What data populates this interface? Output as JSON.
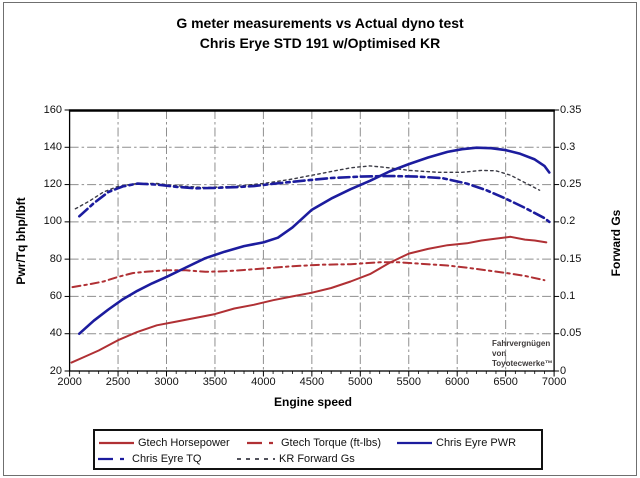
{
  "window": {
    "background": "#ffffff",
    "frame_color": "#6f6f6f"
  },
  "title": {
    "line1": "G meter measurements vs Actual dyno test",
    "line2": "Chris Erye STD 191 w/Optimised KR"
  },
  "watermark": {
    "line1": "Fahrvergnügen",
    "line2": "von",
    "line3": "Toyotecwerke™"
  },
  "chart_data": {
    "type": "line",
    "title": "G meter measurements vs Actual dyno test",
    "subtitle": "Chris Erye STD 191 w/Optimised KR",
    "xlabel": "Engine speed",
    "ylabel_left": "Pwr/Tq bhp/lbft",
    "ylabel_right": "Forward Gs",
    "x_range": [
      2000,
      7000
    ],
    "x_ticks": [
      2000,
      2500,
      3000,
      3500,
      4000,
      4500,
      5000,
      5500,
      6000,
      6500,
      7000
    ],
    "x_minor_tick_step": 100,
    "y_left_range": [
      20,
      160
    ],
    "y_left_ticks": [
      160,
      140,
      120,
      100,
      80,
      60,
      40,
      20
    ],
    "y_right_range": [
      0,
      0.35
    ],
    "y_right_ticks": [
      "0.35",
      "0.3",
      "0.25",
      "0.2",
      "0.15",
      "0.1",
      "0.05",
      "0"
    ],
    "grid": {
      "show": true,
      "color": "#8f8f8f",
      "style": "dash-dot"
    },
    "legend_position": "bottom",
    "series": [
      {
        "name": "gtech_horsepower",
        "label": "Gtech Horsepower",
        "color": "#b03034",
        "line_style": "solid",
        "width": 2,
        "axis": "left",
        "points": [
          [
            2020,
            24.5
          ],
          [
            2150,
            27.5
          ],
          [
            2300,
            31
          ],
          [
            2500,
            36.5
          ],
          [
            2700,
            41
          ],
          [
            2900,
            44.5
          ],
          [
            3100,
            46.5
          ],
          [
            3300,
            48.5
          ],
          [
            3500,
            50.5
          ],
          [
            3700,
            53.5
          ],
          [
            3900,
            55.5
          ],
          [
            4100,
            58
          ],
          [
            4300,
            60
          ],
          [
            4500,
            62
          ],
          [
            4700,
            64.5
          ],
          [
            4900,
            68
          ],
          [
            5100,
            72
          ],
          [
            5300,
            78
          ],
          [
            5500,
            83
          ],
          [
            5700,
            85.5
          ],
          [
            5900,
            87.5
          ],
          [
            6100,
            88.5
          ],
          [
            6250,
            90
          ],
          [
            6400,
            91
          ],
          [
            6550,
            92
          ],
          [
            6700,
            90.5
          ],
          [
            6800,
            90
          ],
          [
            6920,
            89
          ]
        ]
      },
      {
        "name": "gtech_torque",
        "label": "Gtech Torque (ft-lbs)",
        "color": "#b03034",
        "line_style": "dash-dot",
        "width": 2,
        "axis": "left",
        "points": [
          [
            2030,
            65
          ],
          [
            2200,
            66.5
          ],
          [
            2350,
            68
          ],
          [
            2500,
            70.5
          ],
          [
            2650,
            72.5
          ],
          [
            2800,
            73.3
          ],
          [
            3000,
            74
          ],
          [
            3200,
            74
          ],
          [
            3400,
            73.2
          ],
          [
            3600,
            73.5
          ],
          [
            3800,
            74.2
          ],
          [
            4000,
            75
          ],
          [
            4300,
            76.2
          ],
          [
            4600,
            77
          ],
          [
            4900,
            77.3
          ],
          [
            5200,
            78.3
          ],
          [
            5400,
            78.3
          ],
          [
            5600,
            77.6
          ],
          [
            5900,
            76.6
          ],
          [
            6100,
            75.4
          ],
          [
            6300,
            74
          ],
          [
            6500,
            72.6
          ],
          [
            6700,
            71
          ],
          [
            6900,
            68.7
          ]
        ]
      },
      {
        "name": "chris_eyre_pwr",
        "label": "Chris Eyre PWR",
        "color": "#1c1c9e",
        "line_style": "solid",
        "width": 2.6,
        "axis": "left",
        "points": [
          [
            2100,
            40
          ],
          [
            2250,
            47
          ],
          [
            2400,
            53
          ],
          [
            2550,
            58.5
          ],
          [
            2700,
            63
          ],
          [
            2850,
            67
          ],
          [
            3000,
            70.5
          ],
          [
            3200,
            75.5
          ],
          [
            3400,
            80.5
          ],
          [
            3600,
            84
          ],
          [
            3800,
            87
          ],
          [
            4000,
            89
          ],
          [
            4150,
            91.5
          ],
          [
            4300,
            97
          ],
          [
            4500,
            106.5
          ],
          [
            4700,
            112.5
          ],
          [
            4900,
            117.5
          ],
          [
            5100,
            122
          ],
          [
            5300,
            127
          ],
          [
            5500,
            131
          ],
          [
            5700,
            134.5
          ],
          [
            5900,
            137.5
          ],
          [
            6050,
            139
          ],
          [
            6200,
            139.8
          ],
          [
            6350,
            139.5
          ],
          [
            6500,
            138.5
          ],
          [
            6650,
            136.5
          ],
          [
            6800,
            133.5
          ],
          [
            6900,
            130
          ],
          [
            6950,
            126.5
          ]
        ]
      },
      {
        "name": "chris_eyre_tq",
        "label": "Chris Eyre TQ",
        "color": "#1c1c9e",
        "line_style": "dash-dot",
        "width": 2.6,
        "axis": "left",
        "points": [
          [
            2100,
            103
          ],
          [
            2250,
            110
          ],
          [
            2400,
            116
          ],
          [
            2550,
            119
          ],
          [
            2700,
            120.5
          ],
          [
            2900,
            120
          ],
          [
            3100,
            118.8
          ],
          [
            3300,
            118
          ],
          [
            3500,
            118.2
          ],
          [
            3700,
            118.6
          ],
          [
            3900,
            119.2
          ],
          [
            4100,
            120.4
          ],
          [
            4400,
            122
          ],
          [
            4700,
            123.5
          ],
          [
            5000,
            124.3
          ],
          [
            5300,
            124.6
          ],
          [
            5600,
            124.3
          ],
          [
            5850,
            123.4
          ],
          [
            6100,
            120.5
          ],
          [
            6300,
            117
          ],
          [
            6500,
            112.5
          ],
          [
            6700,
            107.5
          ],
          [
            6900,
            102
          ],
          [
            6950,
            100
          ]
        ]
      },
      {
        "name": "kr_forward_gs",
        "label": "KR Forward Gs",
        "color": "#3a3a44",
        "line_style": "dotted",
        "width": 1.4,
        "axis": "right",
        "points": [
          [
            2060,
            0.2175
          ],
          [
            2200,
            0.2275
          ],
          [
            2350,
            0.24
          ],
          [
            2500,
            0.2475
          ],
          [
            2700,
            0.2515
          ],
          [
            2900,
            0.2515
          ],
          [
            3100,
            0.2485
          ],
          [
            3400,
            0.246
          ],
          [
            3700,
            0.2475
          ],
          [
            4000,
            0.2515
          ],
          [
            4300,
            0.2575
          ],
          [
            4600,
            0.265
          ],
          [
            4900,
            0.2725
          ],
          [
            5100,
            0.275
          ],
          [
            5300,
            0.2725
          ],
          [
            5500,
            0.269
          ],
          [
            5800,
            0.2665
          ],
          [
            6050,
            0.2665
          ],
          [
            6250,
            0.269
          ],
          [
            6400,
            0.2685
          ],
          [
            6550,
            0.2625
          ],
          [
            6700,
            0.2525
          ],
          [
            6850,
            0.2425
          ]
        ]
      }
    ]
  }
}
